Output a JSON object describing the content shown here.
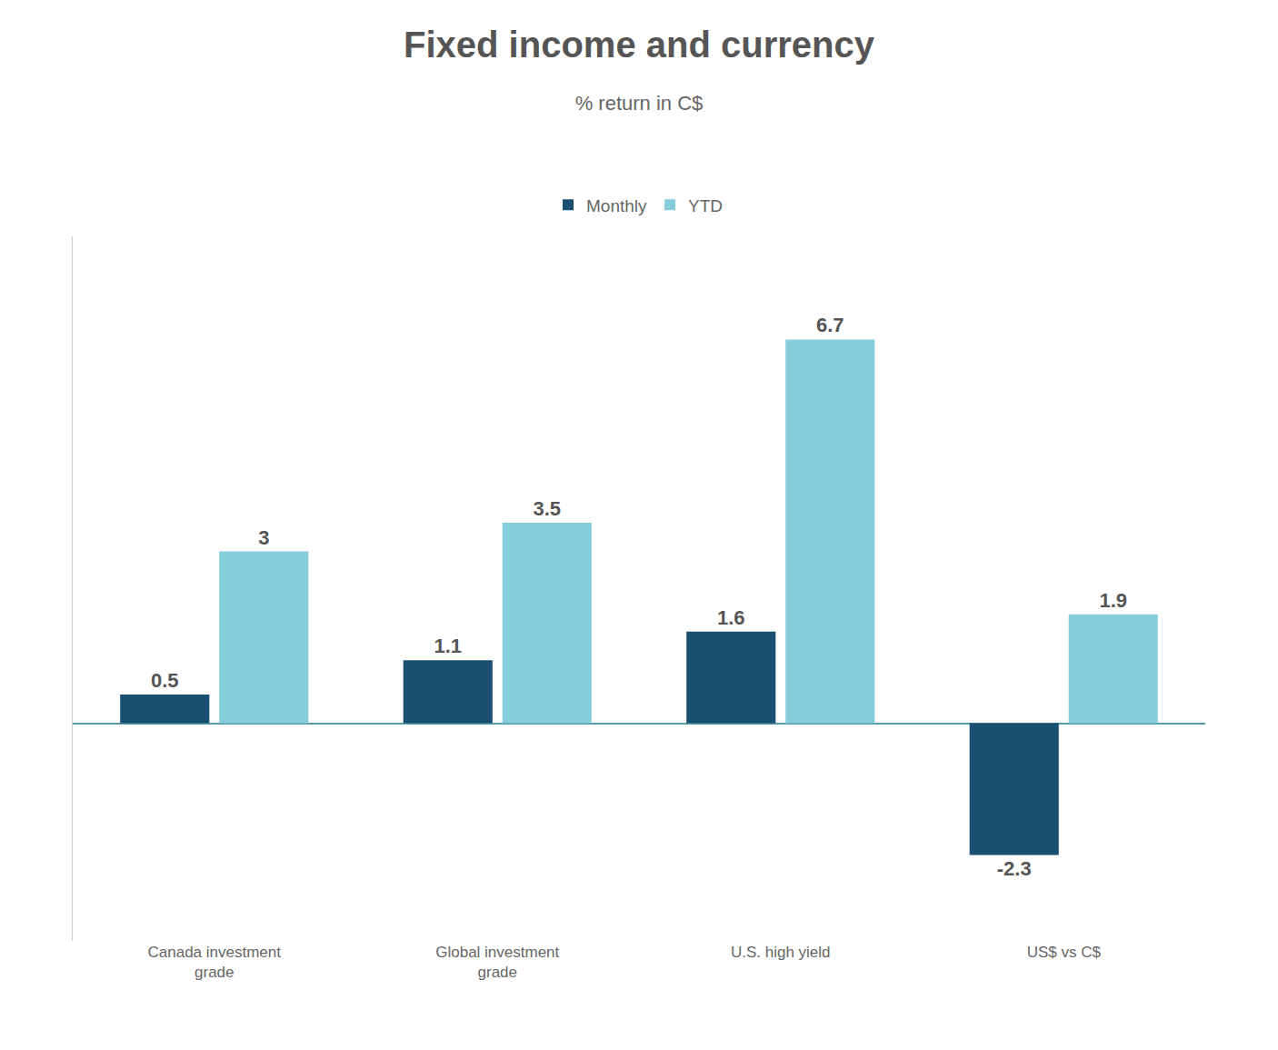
{
  "chart_data": {
    "type": "bar",
    "title": "Fixed income and currency",
    "subtitle": "% return in C$",
    "categories": [
      "Canada investment\ngrade",
      "Global investment\ngrade",
      "U.S. high yield",
      "US$ vs C$"
    ],
    "series": [
      {
        "name": "Monthly",
        "color": "#1b4f72",
        "values": [
          0.5,
          1.1,
          1.6,
          -2.3
        ]
      },
      {
        "name": "YTD",
        "color": "#87cedc",
        "values": [
          3.0,
          3.5,
          6.7,
          1.9
        ]
      }
    ],
    "ylim": [
      -3.8,
      8.5
    ],
    "grid": false,
    "legend": "upper center",
    "data_labels": true,
    "tick_labels": "x"
  }
}
